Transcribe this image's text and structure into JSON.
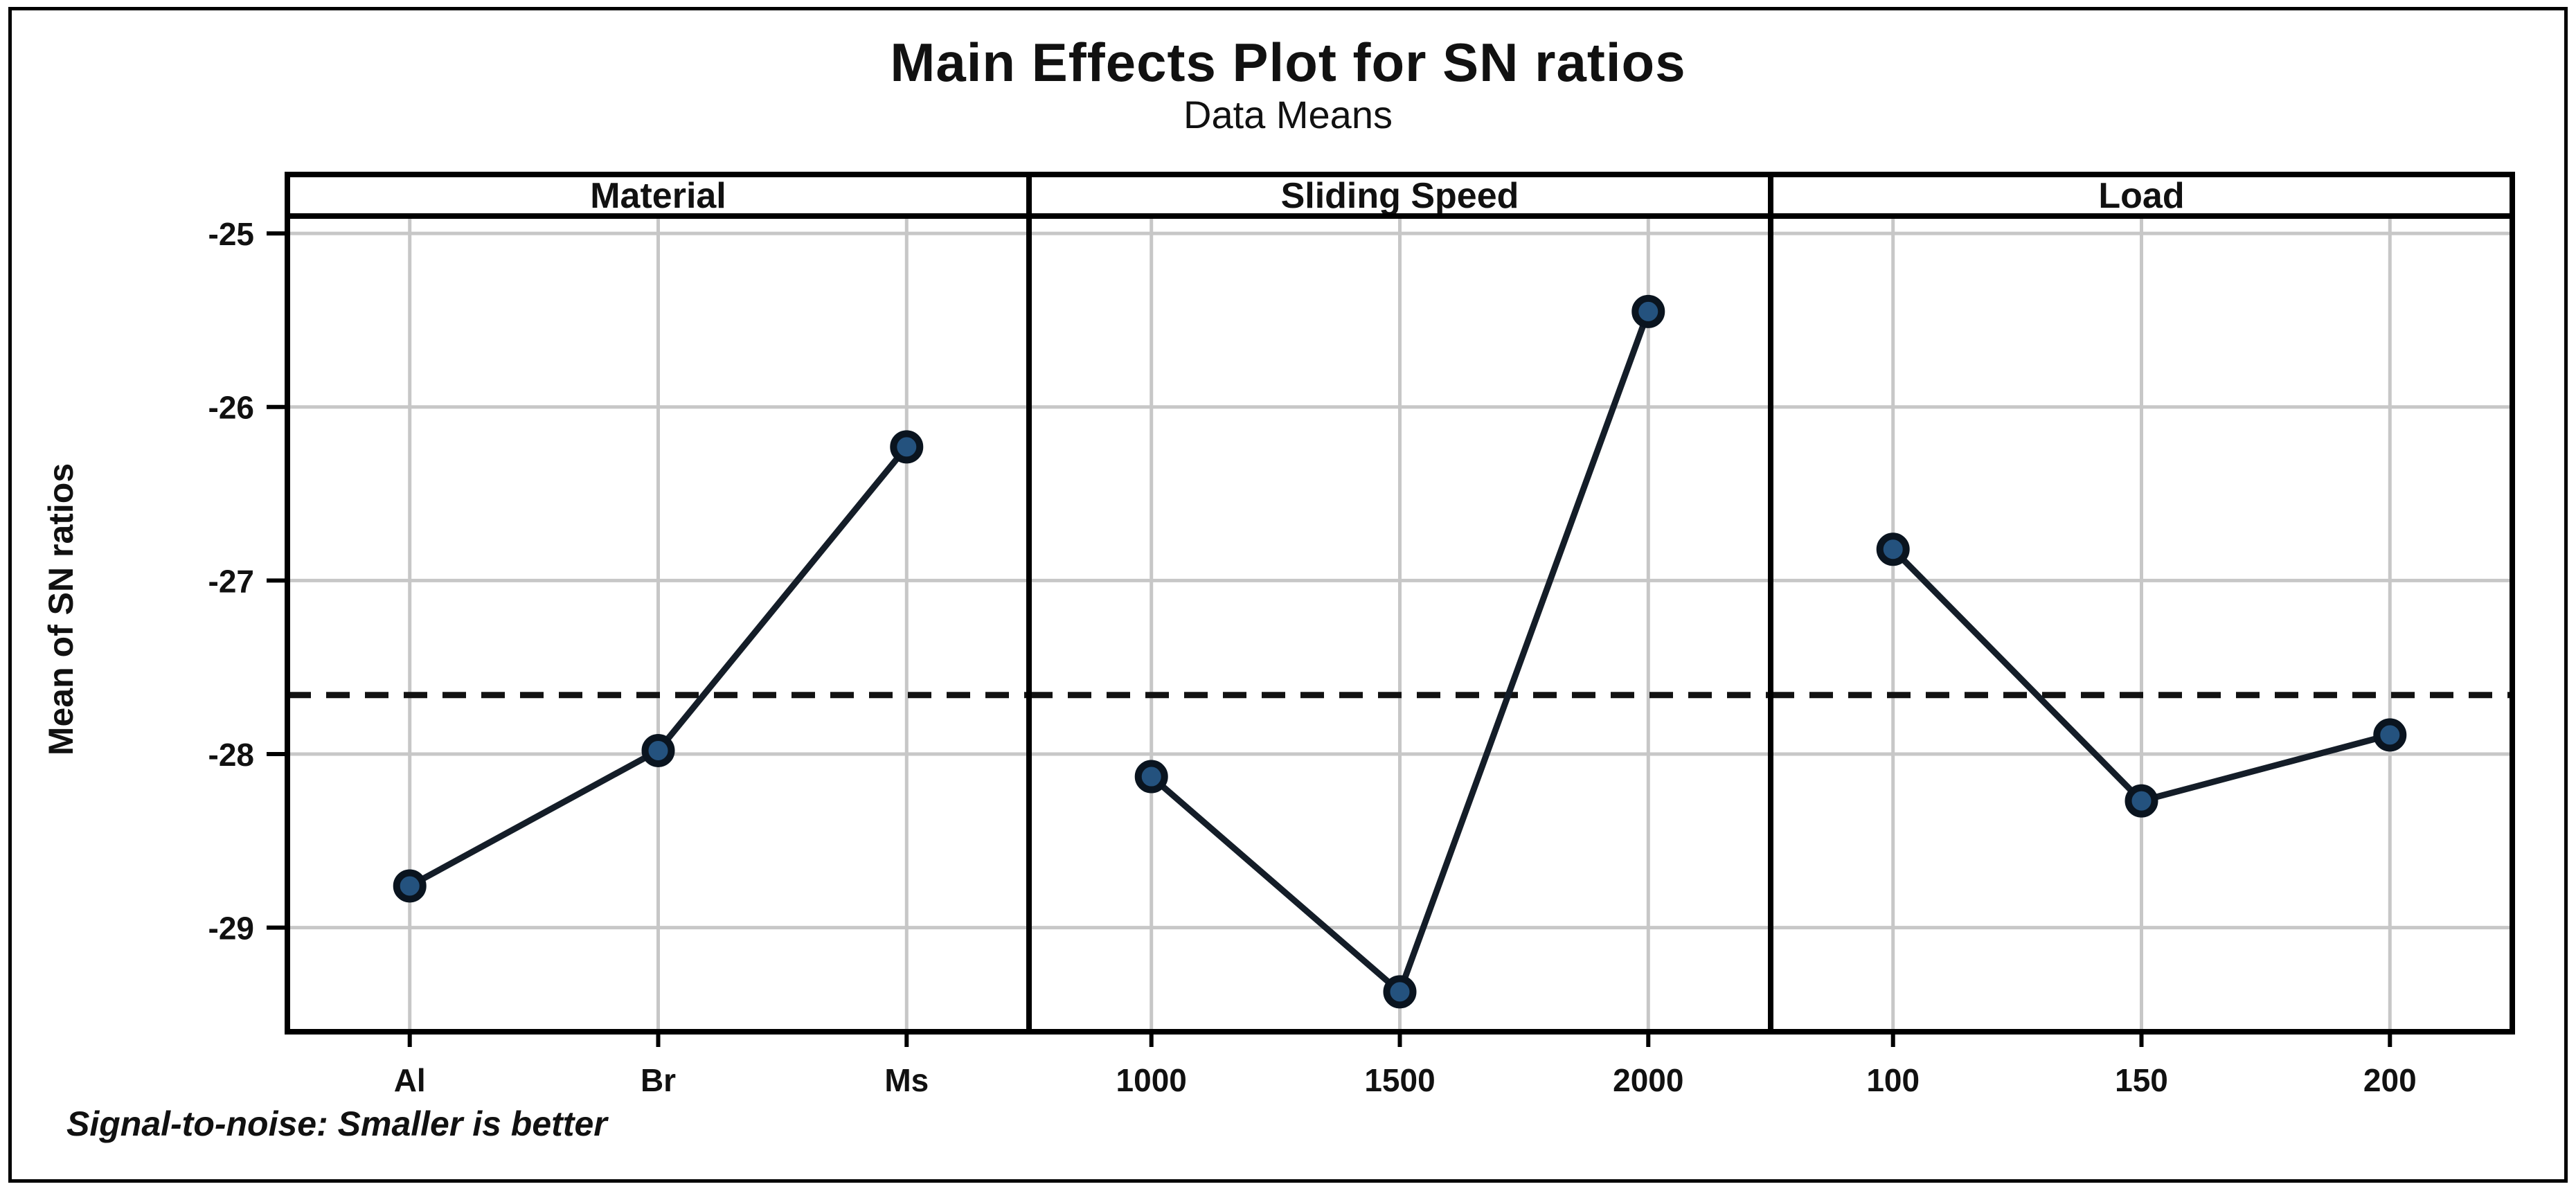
{
  "figure": {
    "title": "Main Effects Plot for SN ratios",
    "subtitle": "Data Means",
    "ylabel": "Mean of SN ratios",
    "footnote": "Signal-to-noise: Smaller is better"
  },
  "chart_data": {
    "type": "line",
    "title": "Main Effects Plot for SN ratios",
    "subtitle": "Data Means",
    "ylabel": "Mean of SN ratios",
    "xlabel": "",
    "footnote": "Signal-to-noise: Smaller is better",
    "grid": true,
    "legend": "none",
    "ylim": [
      -29.6,
      -24.9
    ],
    "yticks": [
      -25,
      -26,
      -27,
      -28,
      -29
    ],
    "overall_mean": -27.66,
    "reference_line_style": "dashed",
    "panels": [
      {
        "label": "Material",
        "categories": [
          "Al",
          "Br",
          "Ms"
        ],
        "values": [
          -28.76,
          -27.98,
          -26.23
        ]
      },
      {
        "label": "Sliding Speed",
        "categories": [
          "1000",
          "1500",
          "2000"
        ],
        "values": [
          -28.13,
          -29.37,
          -25.45
        ]
      },
      {
        "label": "Load",
        "categories": [
          "100",
          "150",
          "200"
        ],
        "values": [
          -26.82,
          -28.27,
          -27.89
        ]
      }
    ],
    "colors": {
      "marker_fill": "#24527e",
      "marker_edge": "#0a141f",
      "line": "#141d28",
      "gridline": "#c7c7c7",
      "frame": "#000000",
      "reference_line": "#121212",
      "text": "#111111",
      "panel_header_bg": "#ffffff"
    }
  }
}
